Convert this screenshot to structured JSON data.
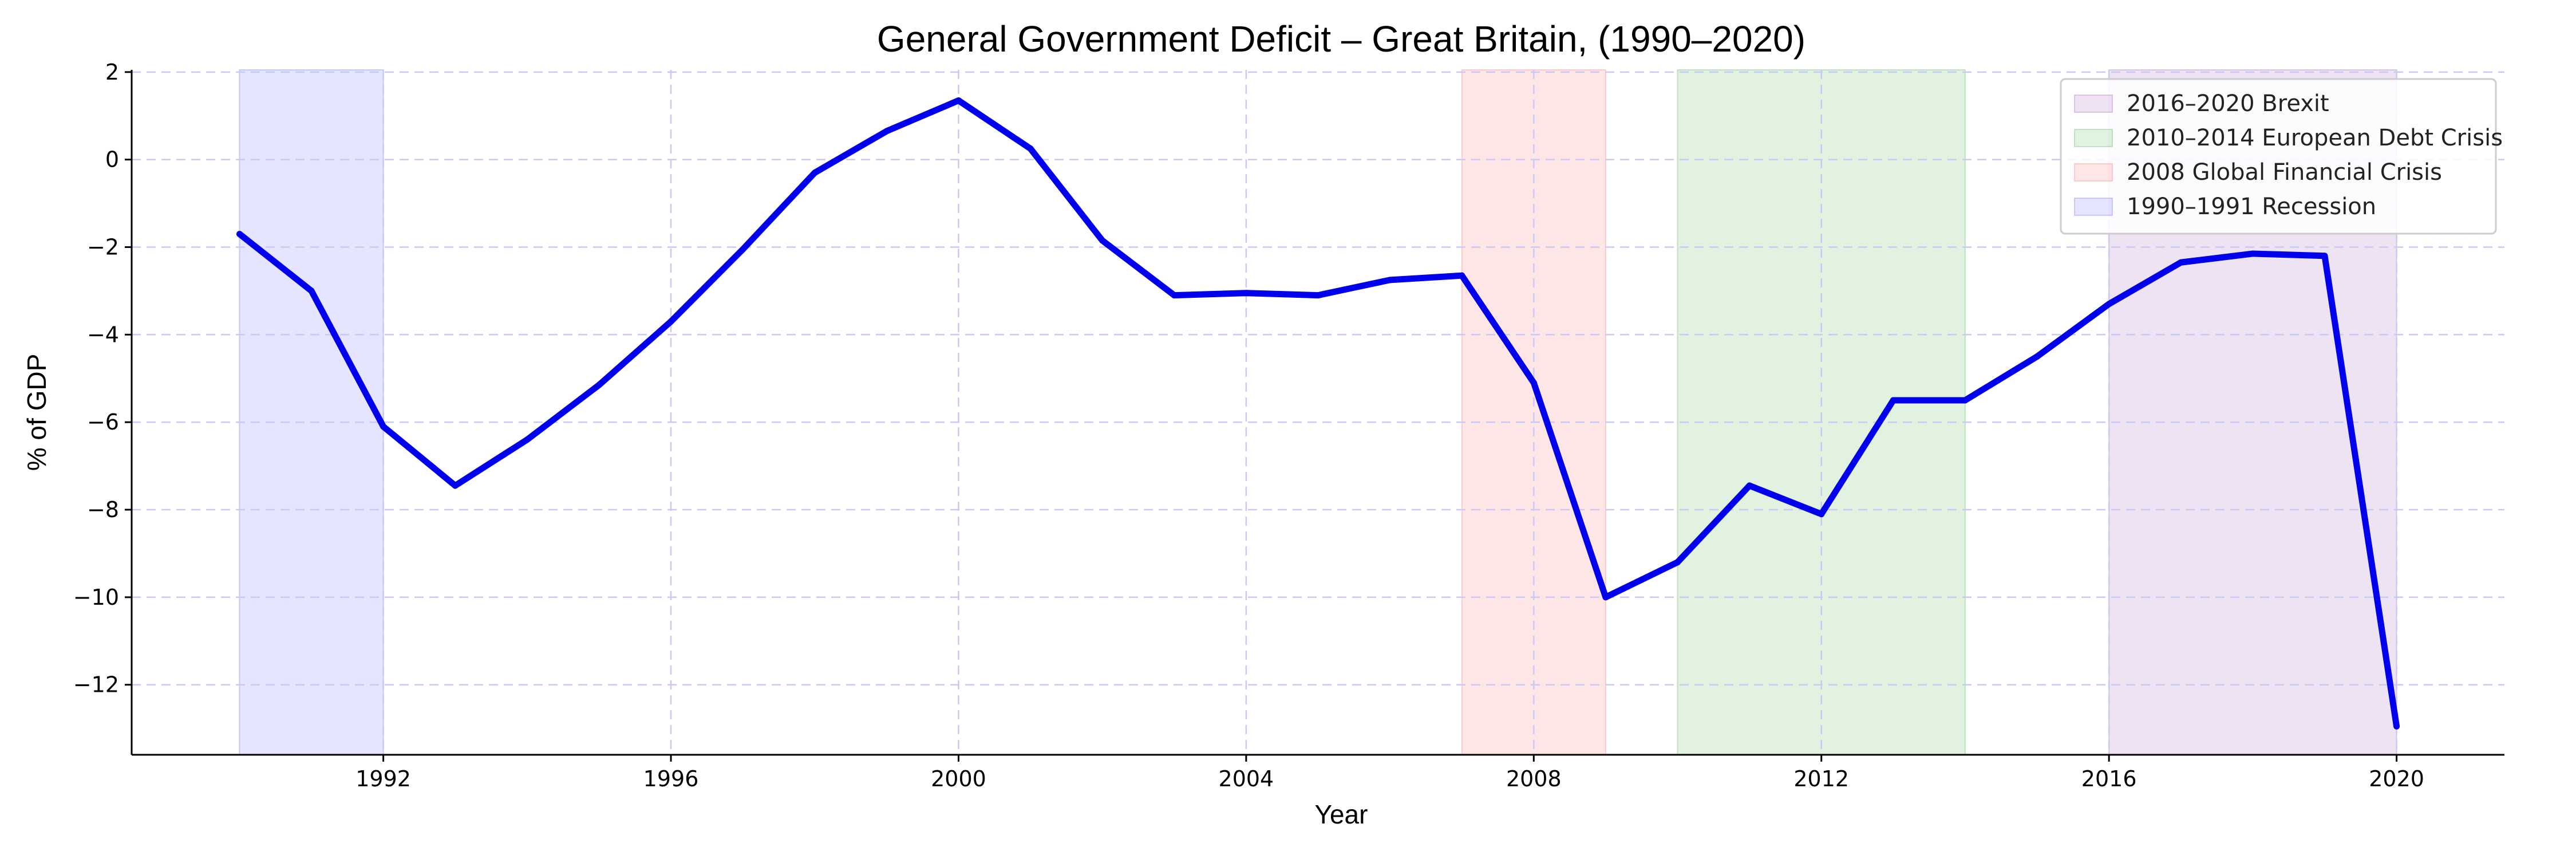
{
  "chart_data": {
    "type": "line",
    "title": "General Government Deficit – Great Britain, (1990–2020)",
    "xlabel": "Year",
    "ylabel": "% of GDP",
    "xlim": [
      1988.5,
      2021.5
    ],
    "ylim": [
      -13.6,
      2.05
    ],
    "x_ticks": [
      1992,
      1996,
      2000,
      2004,
      2008,
      2012,
      2016,
      2020
    ],
    "y_ticks": [
      2,
      0,
      -2,
      -4,
      -6,
      -8,
      -10,
      -12
    ],
    "grid": true,
    "legend_position": "top-right",
    "series": [
      {
        "color": "#0000ee",
        "x": [
          1990,
          1991,
          1992,
          1993,
          1994,
          1995,
          1996,
          1997,
          1998,
          1999,
          2000,
          2001,
          2002,
          2003,
          2004,
          2005,
          2006,
          2007,
          2008,
          2009,
          2010,
          2011,
          2012,
          2013,
          2014,
          2015,
          2016,
          2017,
          2018,
          2019,
          2020
        ],
        "values": [
          -1.7,
          -3.0,
          -6.1,
          -7.45,
          -6.4,
          -5.15,
          -3.7,
          -2.05,
          -0.3,
          0.65,
          1.35,
          0.25,
          -1.85,
          -3.1,
          -3.05,
          -3.1,
          -2.75,
          -2.65,
          -5.1,
          -10.0,
          -9.2,
          -7.45,
          -8.1,
          -5.5,
          -5.5,
          -4.5,
          -3.3,
          -2.35,
          -2.15,
          -2.2,
          -12.95
        ]
      }
    ],
    "shaded_periods": [
      {
        "label": "2016–2020 Brexit",
        "start": 2016,
        "end": 2020,
        "color": "#9b59b6"
      },
      {
        "label": "2010–2014 European Debt Crisis",
        "start": 2010,
        "end": 2014,
        "color": "#4caf50"
      },
      {
        "label": "2008 Global Financial Crisis",
        "start": 2007,
        "end": 2009,
        "color": "#ff6b6b"
      },
      {
        "label": "1990–1991 Recession",
        "start": 1990,
        "end": 1992,
        "color": "#6666ff"
      }
    ]
  }
}
